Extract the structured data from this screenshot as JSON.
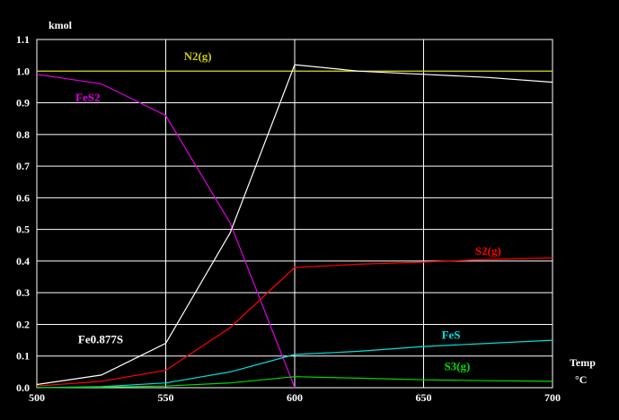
{
  "chart_data": {
    "type": "line",
    "title": "",
    "ylabel": "kmol",
    "xlabel": "Temp",
    "xunit": "°C",
    "xlim": [
      500,
      700
    ],
    "ylim": [
      0,
      1.1
    ],
    "x_ticks": [
      "500",
      "550",
      "600",
      "650",
      "700"
    ],
    "y_ticks": [
      "0.0",
      "0.1",
      "0.2",
      "0.3",
      "0.4",
      "0.5",
      "0.6",
      "0.7",
      "0.8",
      "0.9",
      "1.0",
      "1.1"
    ],
    "grid": true,
    "background": "#000000",
    "series": [
      {
        "name": "N2(g)",
        "color": "#cccc00",
        "x": [
          500,
          525,
          550,
          575,
          600,
          625,
          650,
          675,
          700
        ],
        "y": [
          1.0,
          1.0,
          1.0,
          1.0,
          1.0,
          1.0,
          1.0,
          1.0,
          1.0
        ]
      },
      {
        "name": "FeS2",
        "color": "#e000e0",
        "x": [
          500,
          525,
          550,
          575,
          600
        ],
        "y": [
          0.99,
          0.96,
          0.86,
          0.52,
          0.0
        ]
      },
      {
        "name": "Fe0.877S",
        "color": "#ffffff",
        "x": [
          500,
          525,
          550,
          575,
          600,
          625,
          650,
          675,
          700
        ],
        "y": [
          0.01,
          0.04,
          0.14,
          0.49,
          1.02,
          1.0,
          0.99,
          0.98,
          0.965
        ]
      },
      {
        "name": "S2(g)",
        "color": "#ff0000",
        "x": [
          500,
          525,
          550,
          575,
          600,
          625,
          650,
          675,
          700
        ],
        "y": [
          0.005,
          0.02,
          0.055,
          0.19,
          0.38,
          0.39,
          0.397,
          0.405,
          0.41
        ]
      },
      {
        "name": "FeS",
        "color": "#00e0e0",
        "x": [
          500,
          525,
          550,
          575,
          600,
          625,
          650,
          675,
          700
        ],
        "y": [
          0.0,
          0.003,
          0.015,
          0.05,
          0.105,
          0.115,
          0.13,
          0.14,
          0.15
        ]
      },
      {
        "name": "S3(g)",
        "color": "#00dd00",
        "x": [
          500,
          525,
          550,
          575,
          600,
          625,
          650,
          675,
          700
        ],
        "y": [
          0.0,
          0.002,
          0.005,
          0.015,
          0.035,
          0.03,
          0.025,
          0.022,
          0.02
        ]
      }
    ]
  }
}
